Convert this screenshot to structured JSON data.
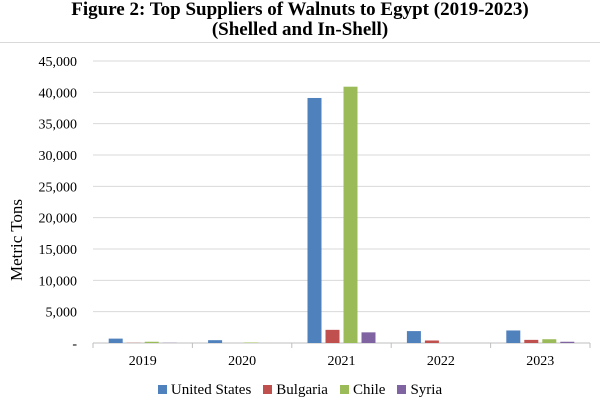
{
  "title": {
    "line1": "Figure 2: Top Suppliers of Walnuts to Egypt (2019-2023)",
    "line2": "(Shelled and In-Shell)"
  },
  "chart_data": {
    "type": "bar",
    "title": "Figure 2: Top Suppliers of Walnuts to Egypt (2019-2023) (Shelled and In-Shell)",
    "xlabel": "",
    "ylabel": "Metric Tons",
    "categories": [
      "2019",
      "2020",
      "2021",
      "2022",
      "2023"
    ],
    "ylim": [
      0,
      45000
    ],
    "yticks": [
      0,
      5000,
      10000,
      15000,
      20000,
      25000,
      30000,
      35000,
      40000,
      45000
    ],
    "ytick_labels": [
      "-",
      "5,000",
      "10,000",
      "15,000",
      "20,000",
      "25,000",
      "30,000",
      "35,000",
      "40,000",
      "45,000"
    ],
    "grid": "horizontal",
    "legend_position": "bottom",
    "series": [
      {
        "name": "United States",
        "color": "#4f81bd",
        "values": [
          700,
          450,
          39100,
          1900,
          2000
        ]
      },
      {
        "name": "Bulgaria",
        "color": "#c0504d",
        "values": [
          30,
          0,
          2100,
          400,
          500
        ]
      },
      {
        "name": "Chile",
        "color": "#9bbb59",
        "values": [
          200,
          80,
          40900,
          0,
          600
        ]
      },
      {
        "name": "Syria",
        "color": "#8064a2",
        "values": [
          30,
          0,
          1700,
          0,
          200
        ]
      }
    ]
  }
}
